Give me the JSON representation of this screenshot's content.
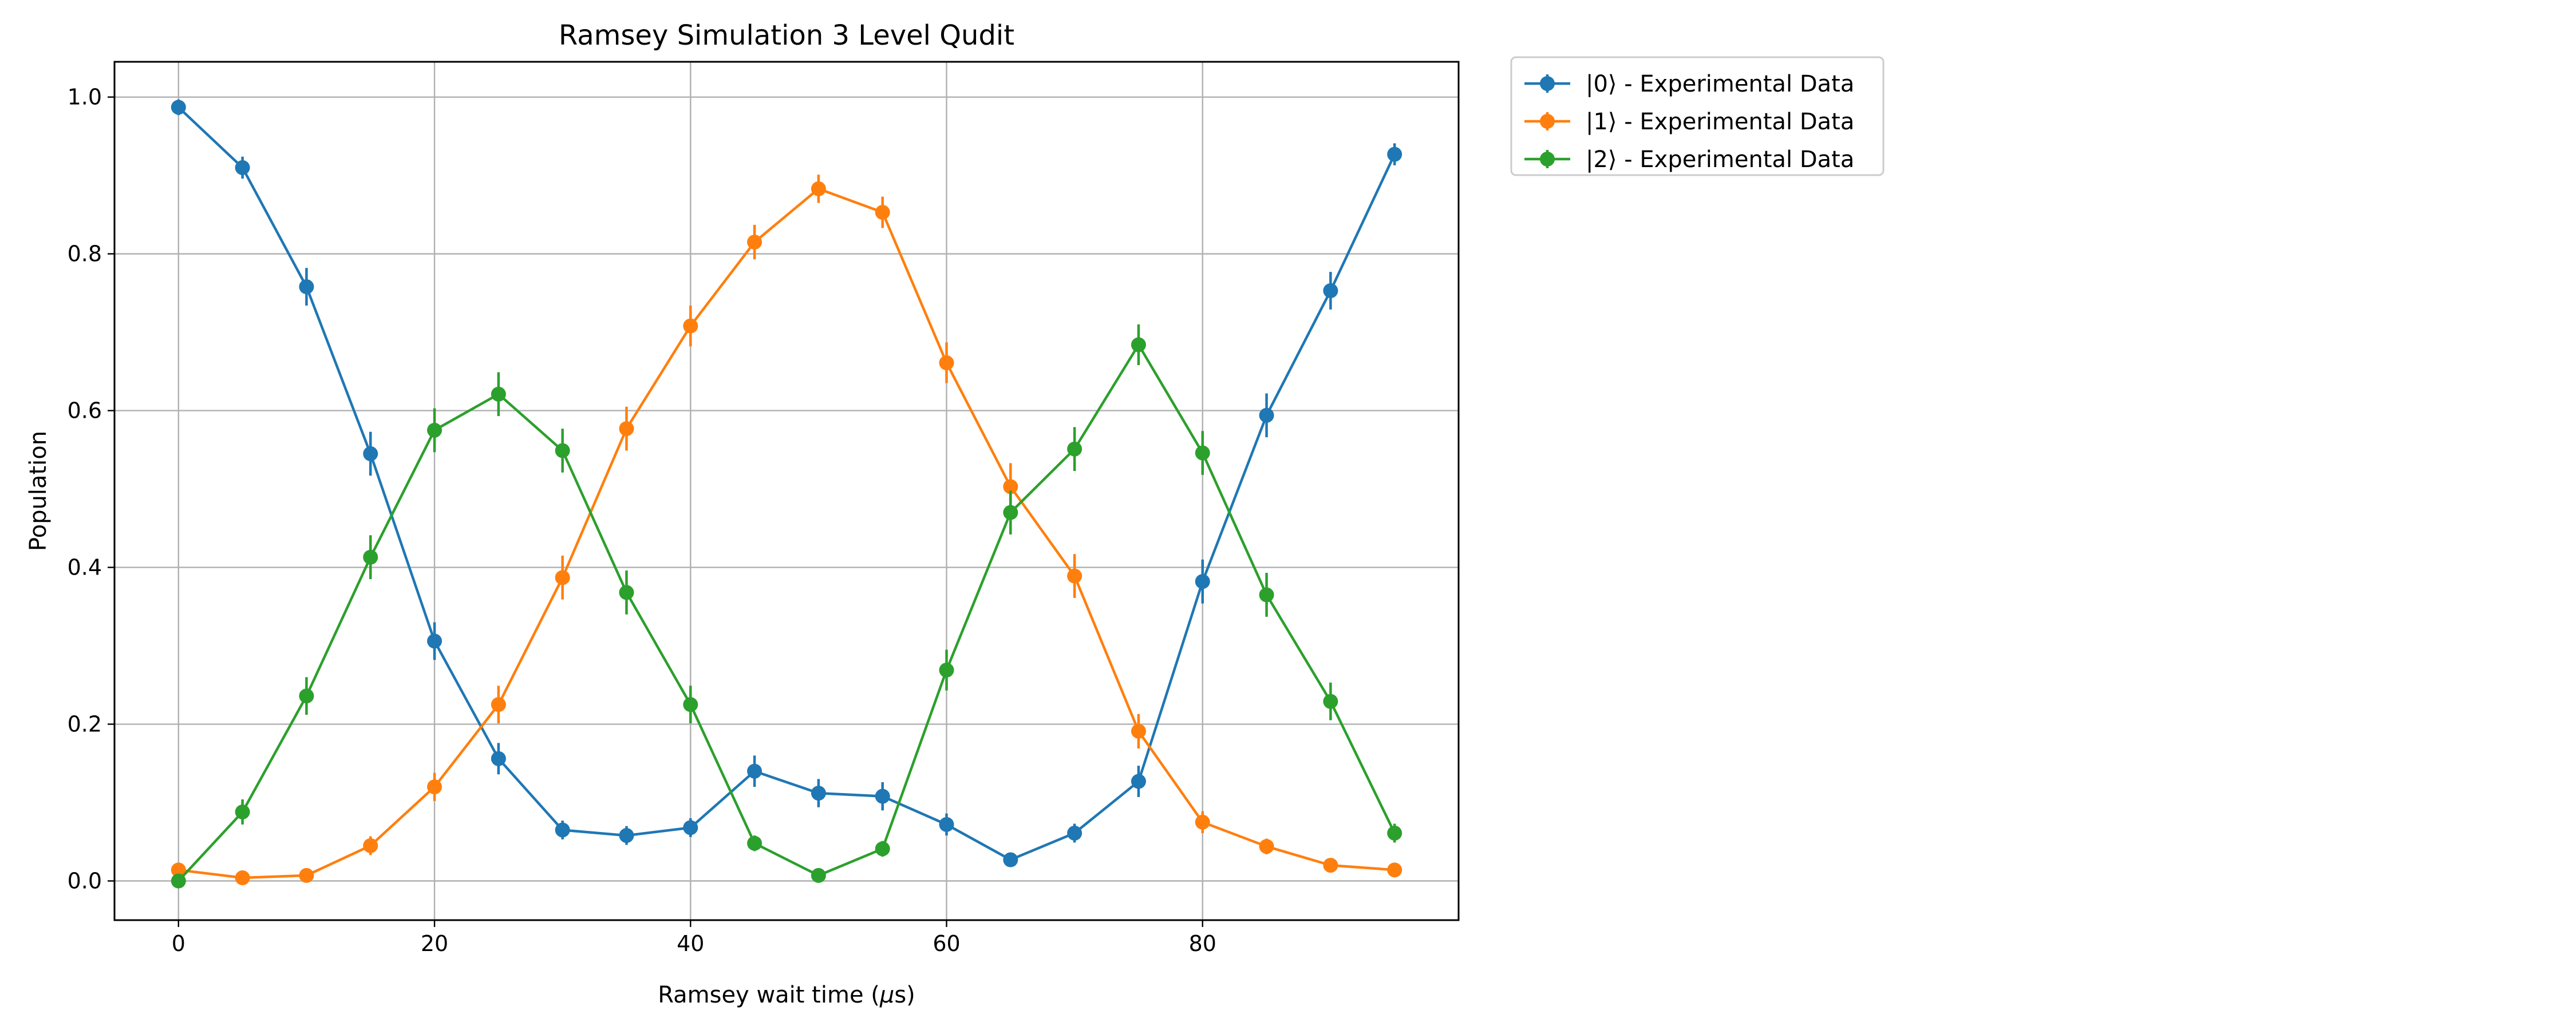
{
  "chart_data": {
    "type": "line",
    "title": "Ramsey Simulation 3 Level Qudit",
    "xlabel": "Ramsey wait time (",
    "xlabel_mu": "μ",
    "xlabel_unit": "s)",
    "ylabel": "Population",
    "xlim": [
      -5,
      100
    ],
    "ylim": [
      -0.05,
      1.045
    ],
    "xticks": [
      0,
      20,
      40,
      60,
      80
    ],
    "yticks": [
      0.0,
      0.2,
      0.4,
      0.6,
      0.8,
      1.0
    ],
    "xtick_labels": [
      "0",
      "20",
      "40",
      "60",
      "80"
    ],
    "ytick_labels": [
      "0.0",
      "0.2",
      "0.4",
      "0.6",
      "0.8",
      "1.0"
    ],
    "grid": true,
    "legend_position": "outside-top-right",
    "x": [
      0,
      5,
      10,
      15,
      20,
      25,
      30,
      35,
      40,
      45,
      50,
      55,
      60,
      65,
      70,
      75,
      80,
      85,
      90,
      95
    ],
    "series": [
      {
        "name": "|0⟩ - Experimental Data",
        "color": "#1f77b4",
        "values": [
          0.987,
          0.91,
          0.758,
          0.545,
          0.306,
          0.156,
          0.065,
          0.058,
          0.068,
          0.14,
          0.112,
          0.108,
          0.072,
          0.027,
          0.061,
          0.127,
          0.382,
          0.594,
          0.753,
          0.927
        ],
        "errors": [
          0.01,
          0.014,
          0.024,
          0.028,
          0.024,
          0.02,
          0.012,
          0.012,
          0.012,
          0.02,
          0.018,
          0.018,
          0.014,
          0.008,
          0.012,
          0.02,
          0.028,
          0.028,
          0.024,
          0.014
        ]
      },
      {
        "name": "|1⟩ - Experimental Data",
        "color": "#ff7f0e",
        "values": [
          0.014,
          0.004,
          0.007,
          0.045,
          0.12,
          0.225,
          0.387,
          0.577,
          0.708,
          0.815,
          0.883,
          0.853,
          0.661,
          0.503,
          0.389,
          0.191,
          0.075,
          0.044,
          0.02,
          0.014
        ],
        "errors": [
          0.006,
          0.004,
          0.006,
          0.012,
          0.018,
          0.024,
          0.028,
          0.028,
          0.026,
          0.022,
          0.018,
          0.02,
          0.026,
          0.03,
          0.028,
          0.022,
          0.014,
          0.01,
          0.008,
          0.006
        ]
      },
      {
        "name": "|2⟩ - Experimental Data",
        "color": "#2ca02c",
        "values": [
          0.0,
          0.088,
          0.236,
          0.413,
          0.575,
          0.621,
          0.549,
          0.368,
          0.225,
          0.048,
          0.007,
          0.041,
          0.269,
          0.47,
          0.551,
          0.684,
          0.546,
          0.365,
          0.229,
          0.061
        ],
        "errors": [
          0.004,
          0.016,
          0.024,
          0.028,
          0.028,
          0.028,
          0.028,
          0.028,
          0.024,
          0.01,
          0.004,
          0.01,
          0.026,
          0.028,
          0.028,
          0.026,
          0.028,
          0.028,
          0.024,
          0.012
        ]
      }
    ]
  }
}
